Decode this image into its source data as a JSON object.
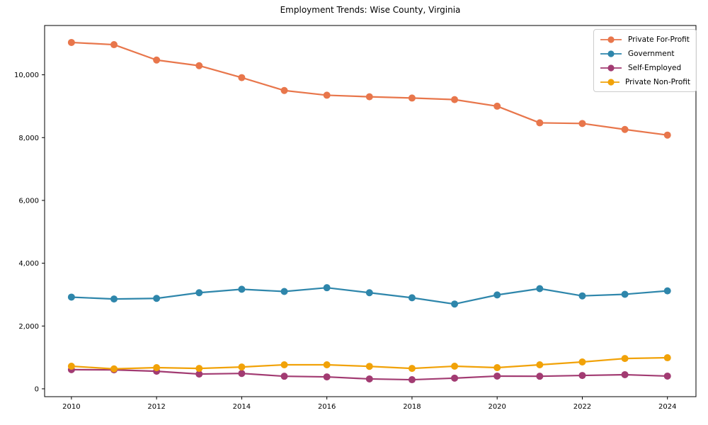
{
  "chart_data": {
    "type": "line",
    "title": "Employment Trends: Wise County, Virginia",
    "xlabel": "",
    "ylabel": "",
    "grid": false,
    "x": [
      2010,
      2011,
      2012,
      2013,
      2014,
      2015,
      2016,
      2017,
      2018,
      2019,
      2020,
      2021,
      2022,
      2023,
      2024
    ],
    "series": [
      {
        "name": "Private For-Profit",
        "color": "#E8764B",
        "values": [
          11030,
          10960,
          10470,
          10290,
          9910,
          9500,
          9350,
          9300,
          9260,
          9210,
          9000,
          8470,
          8450,
          8260,
          8080
        ]
      },
      {
        "name": "Government",
        "color": "#2E86AB",
        "values": [
          2920,
          2860,
          2880,
          3060,
          3170,
          3100,
          3220,
          3060,
          2900,
          2700,
          2990,
          3190,
          2960,
          3010,
          3120
        ]
      },
      {
        "name": "Self-Employed",
        "color": "#A23B72",
        "values": [
          610,
          605,
          560,
          470,
          490,
          400,
          380,
          315,
          290,
          340,
          405,
          400,
          425,
          450,
          405
        ]
      },
      {
        "name": "Private Non-Profit",
        "color": "#F1A208",
        "values": [
          720,
          635,
          675,
          650,
          695,
          765,
          765,
          715,
          650,
          720,
          675,
          765,
          855,
          965,
          990
        ]
      }
    ],
    "xticks": {
      "values": [
        2010,
        2012,
        2014,
        2016,
        2018,
        2020,
        2022,
        2024
      ],
      "labels": [
        "2010",
        "2012",
        "2014",
        "2016",
        "2018",
        "2020",
        "2022",
        "2024"
      ]
    },
    "yticks": {
      "values": [
        0,
        2000,
        4000,
        6000,
        8000,
        10000
      ],
      "labels": [
        "0",
        "2,000",
        "4,000",
        "6,000",
        "8,000",
        "10,000"
      ]
    },
    "xlim": [
      2009.37,
      2024.67
    ],
    "ylim": [
      -250,
      11570
    ],
    "legend": {
      "position": "upper right"
    }
  }
}
